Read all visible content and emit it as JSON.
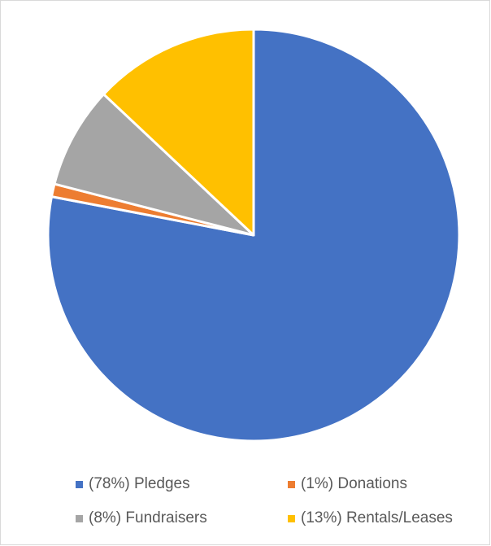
{
  "chart_data": {
    "type": "pie",
    "categories": [
      "Pledges",
      "Donations",
      "Fundraisers",
      "Rentals/Leases"
    ],
    "values": [
      78,
      1,
      8,
      13
    ],
    "colors": [
      "#4472c4",
      "#ed7d31",
      "#a5a5a5",
      "#ffc000"
    ],
    "legend": {
      "position": "bottom",
      "entries": [
        "(78%) Pledges",
        "(1%) Donations",
        "(8%) Fundraisers",
        "(13%) Rentals/Leases"
      ]
    }
  }
}
